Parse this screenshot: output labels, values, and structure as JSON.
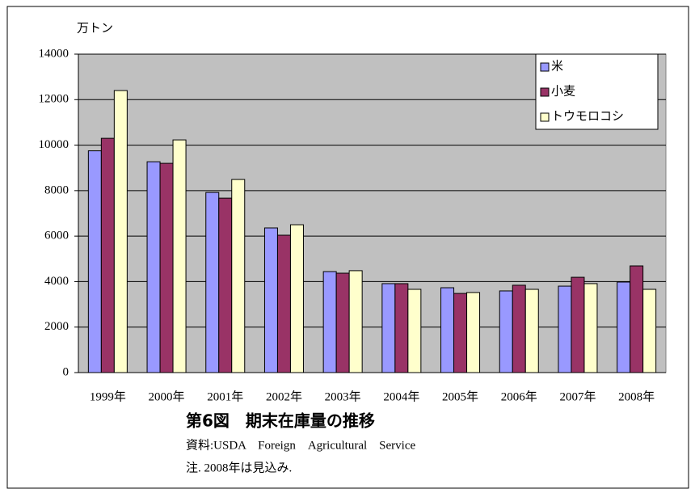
{
  "chart_data": {
    "type": "bar",
    "unit_label": "万トン",
    "title": "第6図　期末在庫量の推移",
    "source": "資料:USDA　Foreign　Agricultural　Service",
    "note": "注. 2008年は見込み.",
    "categories": [
      "1999年",
      "2000年",
      "2001年",
      "2002年",
      "2003年",
      "2004年",
      "2005年",
      "2006年",
      "2007年",
      "2008年"
    ],
    "series": [
      {
        "name": "米",
        "color": "#9999ff",
        "values": [
          9750,
          9270,
          7920,
          6360,
          4440,
          3910,
          3730,
          3590,
          3800,
          3980
        ]
      },
      {
        "name": "小麦",
        "color": "#993366",
        "values": [
          10300,
          9200,
          7670,
          6040,
          4370,
          3910,
          3480,
          3840,
          4190,
          4690
        ]
      },
      {
        "name": "トウモロコシ",
        "color": "#ffffcc",
        "values": [
          12400,
          10230,
          8490,
          6500,
          4480,
          3660,
          3520,
          3660,
          3910,
          3660
        ]
      }
    ],
    "ylim": [
      0,
      14000
    ],
    "yticks": [
      0,
      2000,
      4000,
      6000,
      8000,
      10000,
      12000,
      14000
    ],
    "grid": true,
    "legend": "top-right"
  }
}
